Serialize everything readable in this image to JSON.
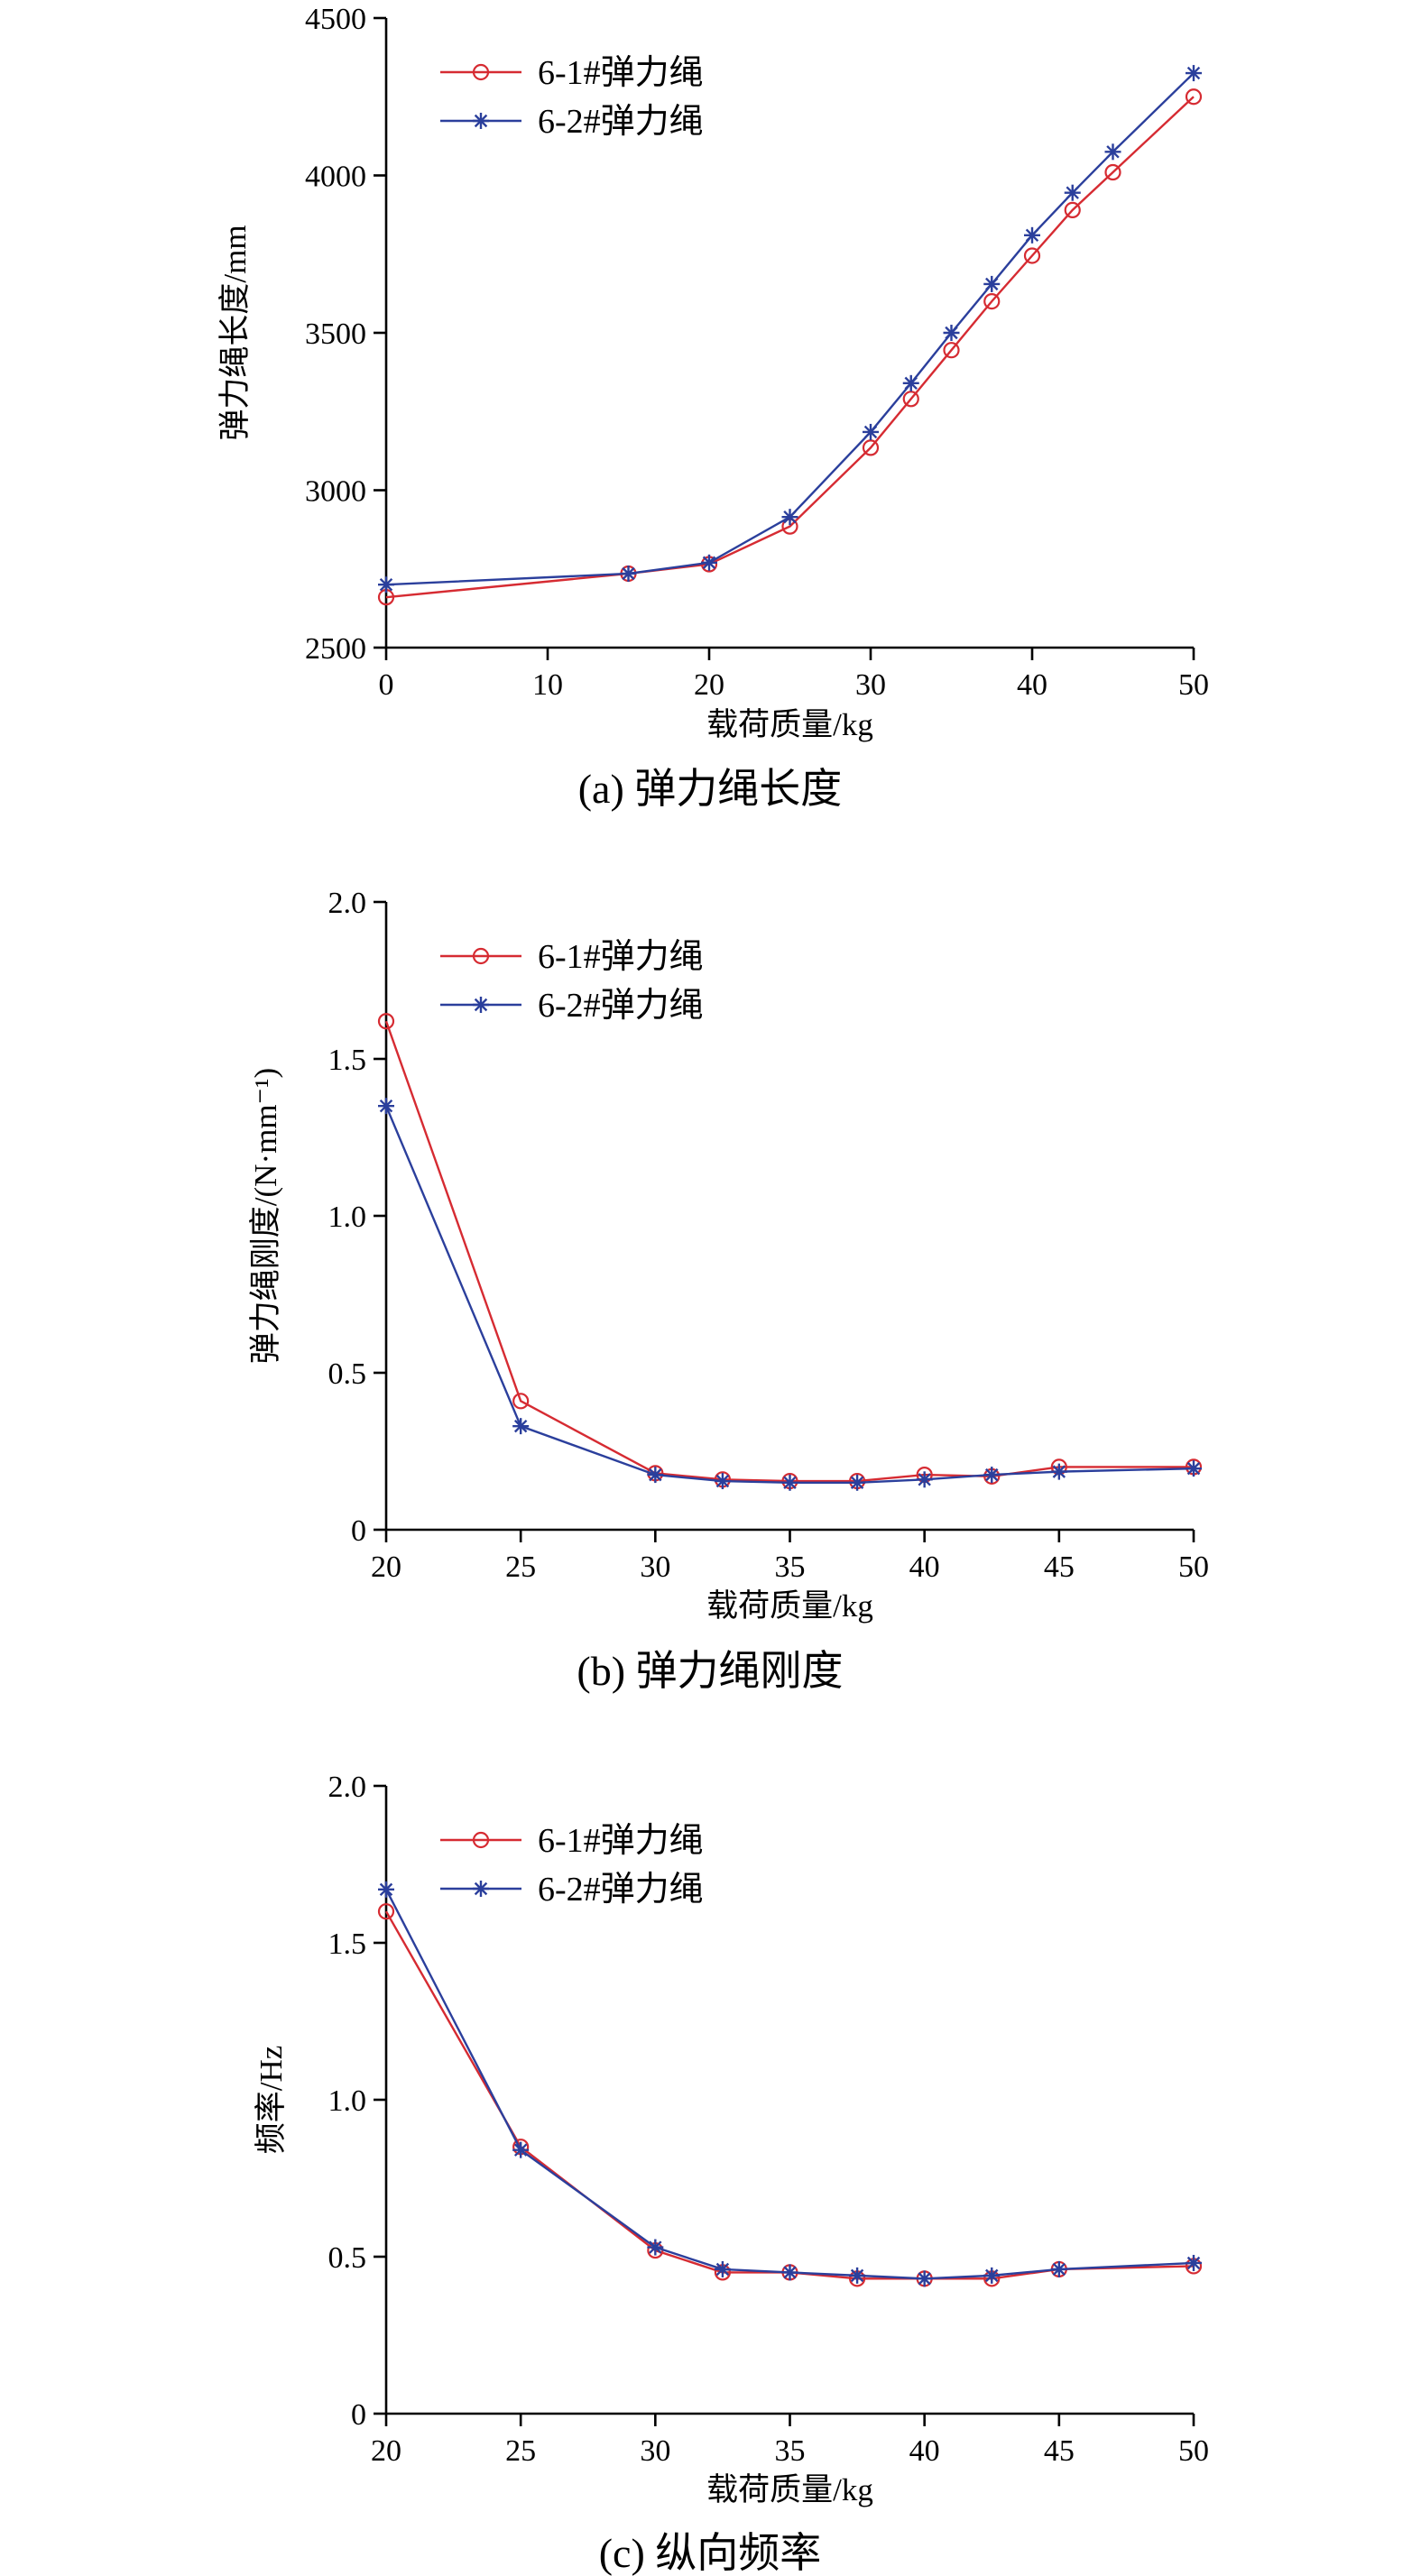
{
  "colors": {
    "series_1": "#d62b32",
    "series_2": "#2b3f9c"
  },
  "chart_data": [
    {
      "type": "line",
      "caption": "(a)  弹力绳长度",
      "xlabel": "载荷质量/kg",
      "ylabel": "弹力绳长度/mm",
      "xlim": [
        0,
        50
      ],
      "ylim": [
        2500,
        4500
      ],
      "x_ticks": [
        0,
        10,
        20,
        30,
        40,
        50
      ],
      "y_ticks": [
        2500,
        3000,
        3500,
        4000,
        4500
      ],
      "x_tick_labels": [
        "0",
        "10",
        "20",
        "30",
        "40",
        "50"
      ],
      "y_tick_labels": [
        "2500",
        "3000",
        "3500",
        "4000",
        "4500"
      ],
      "legend_position": "top-left",
      "series": [
        {
          "name": "6-1#弹力绳",
          "marker": "circle",
          "color": "#d62b32",
          "x": [
            0,
            15,
            20,
            25,
            30,
            32.5,
            35,
            37.5,
            40,
            42.5,
            45,
            50
          ],
          "y": [
            2660,
            2735,
            2765,
            2885,
            3135,
            3290,
            3445,
            3600,
            3745,
            3890,
            4010,
            4250
          ]
        },
        {
          "name": "6-2#弹力绳",
          "marker": "star",
          "color": "#2b3f9c",
          "x": [
            0,
            15,
            20,
            25,
            30,
            32.5,
            35,
            37.5,
            40,
            42.5,
            45,
            50
          ],
          "y": [
            2700,
            2735,
            2770,
            2915,
            3185,
            3340,
            3500,
            3655,
            3810,
            3945,
            4075,
            4325
          ]
        }
      ]
    },
    {
      "type": "line",
      "caption": "(b)  弹力绳刚度",
      "xlabel": "载荷质量/kg",
      "ylabel": "弹力绳刚度/(N·mm⁻¹)",
      "xlim": [
        20,
        50
      ],
      "ylim": [
        0,
        2.0
      ],
      "x_ticks": [
        20,
        25,
        30,
        35,
        40,
        45,
        50
      ],
      "y_ticks": [
        0,
        0.5,
        1.0,
        1.5,
        2.0
      ],
      "x_tick_labels": [
        "20",
        "25",
        "30",
        "35",
        "40",
        "45",
        "50"
      ],
      "y_tick_labels": [
        "0",
        "0.5",
        "1.0",
        "1.5",
        "2.0"
      ],
      "legend_position": "top-left",
      "series": [
        {
          "name": "6-1#弹力绳",
          "marker": "circle",
          "color": "#d62b32",
          "x": [
            20,
            25,
            30,
            32.5,
            35,
            37.5,
            40,
            42.5,
            45,
            50
          ],
          "y": [
            1.62,
            0.41,
            0.18,
            0.16,
            0.155,
            0.155,
            0.175,
            0.17,
            0.2,
            0.2
          ]
        },
        {
          "name": "6-2#弹力绳",
          "marker": "star",
          "color": "#2b3f9c",
          "x": [
            20,
            25,
            30,
            32.5,
            35,
            37.5,
            40,
            42.5,
            45,
            50
          ],
          "y": [
            1.35,
            0.33,
            0.175,
            0.155,
            0.15,
            0.15,
            0.16,
            0.175,
            0.185,
            0.195
          ]
        }
      ]
    },
    {
      "type": "line",
      "caption": "(c)  纵向频率",
      "xlabel": "载荷质量/kg",
      "ylabel": "频率/Hz",
      "xlim": [
        20,
        50
      ],
      "ylim": [
        0,
        2.0
      ],
      "x_ticks": [
        20,
        25,
        30,
        35,
        40,
        45,
        50
      ],
      "y_ticks": [
        0,
        0.5,
        1.0,
        1.5,
        2.0
      ],
      "x_tick_labels": [
        "20",
        "25",
        "30",
        "35",
        "40",
        "45",
        "50"
      ],
      "y_tick_labels": [
        "0",
        "0.5",
        "1.0",
        "1.5",
        "2.0"
      ],
      "legend_position": "top-left",
      "series": [
        {
          "name": "6-1#弹力绳",
          "marker": "circle",
          "color": "#d62b32",
          "x": [
            20,
            25,
            30,
            32.5,
            35,
            37.5,
            40,
            42.5,
            45,
            50
          ],
          "y": [
            1.6,
            0.85,
            0.52,
            0.45,
            0.45,
            0.43,
            0.43,
            0.43,
            0.46,
            0.47
          ]
        },
        {
          "name": "6-2#弹力绳",
          "marker": "star",
          "color": "#2b3f9c",
          "x": [
            20,
            25,
            30,
            32.5,
            35,
            37.5,
            40,
            42.5,
            45,
            50
          ],
          "y": [
            1.67,
            0.84,
            0.53,
            0.46,
            0.45,
            0.44,
            0.43,
            0.44,
            0.46,
            0.48
          ]
        }
      ]
    }
  ]
}
